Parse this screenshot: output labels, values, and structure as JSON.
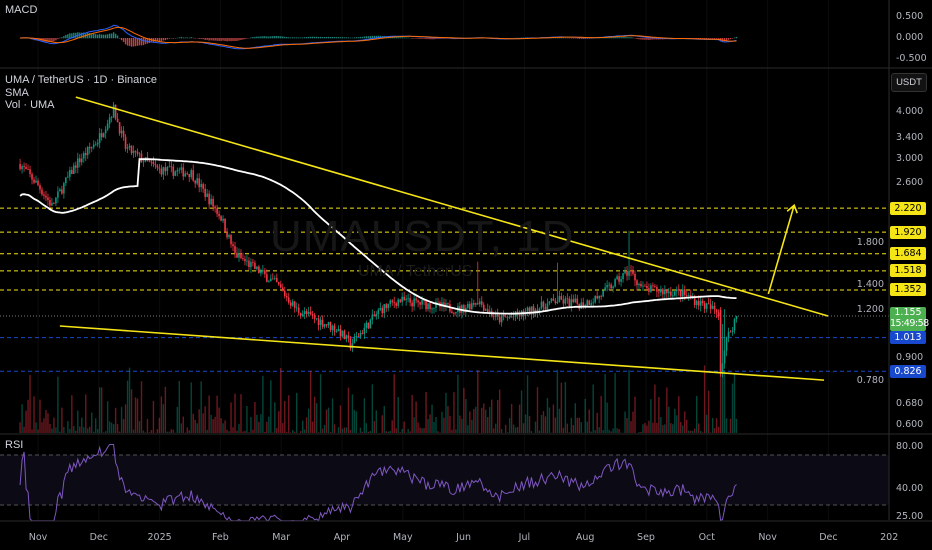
{
  "header": {
    "symbol_title": "UMA / TetherUS · 1D · Binance",
    "sma_label": "SMA",
    "vol_label": "Vol · UMA",
    "currency_button": "USDT"
  },
  "watermark": {
    "ticker": "UMAUSDT, 1D",
    "name": "UMA / TetherUS"
  },
  "colors": {
    "up": "#089981",
    "down": "#f23645",
    "sma": "#ffffff",
    "trendline": "#f5e516",
    "resistance": "#f5e516",
    "support": "#1848cc",
    "rsi": "#7e57c2",
    "macd": "#2962ff",
    "signal": "#ff6d00",
    "last_price": "#4caf50"
  },
  "chart_data": [
    {
      "type": "candlestick",
      "title": "UMA / TetherUS · 1D · Binance",
      "scale": "log",
      "ylim": [
        0.57,
        4.6
      ],
      "x_ticks": [
        "Nov",
        "Dec",
        "2025",
        "Feb",
        "Mar",
        "Apr",
        "May",
        "Jun",
        "Jul",
        "Aug",
        "Sep",
        "Oct",
        "Nov",
        "Dec",
        "202"
      ],
      "y_ticks": [
        "4.000",
        "3.400",
        "3.000",
        "2.600",
        "1.800",
        "1.400",
        "1.200",
        "0.900",
        "0.780",
        "0.680",
        "0.600"
      ],
      "approx_close_path": [
        [
          "2024-10-23",
          2.9
        ],
        [
          "2024-11-01",
          2.55
        ],
        [
          "2024-11-08",
          2.25
        ],
        [
          "2024-11-20",
          2.9
        ],
        [
          "2024-12-01",
          3.35
        ],
        [
          "2024-12-09",
          4.05
        ],
        [
          "2024-12-15",
          3.2
        ],
        [
          "2024-12-25",
          2.95
        ],
        [
          "2025-01-01",
          2.8
        ],
        [
          "2025-01-17",
          2.75
        ],
        [
          "2025-02-01",
          2.1
        ],
        [
          "2025-02-08",
          1.68
        ],
        [
          "2025-03-01",
          1.4
        ],
        [
          "2025-03-11",
          1.2
        ],
        [
          "2025-04-01",
          1.06
        ],
        [
          "2025-04-07",
          0.97
        ],
        [
          "2025-04-22",
          1.2
        ],
        [
          "2025-05-01",
          1.27
        ],
        [
          "2025-05-15",
          1.24
        ],
        [
          "2025-06-01",
          1.2
        ],
        [
          "2025-06-10",
          1.27
        ],
        [
          "2025-06-20",
          1.13
        ],
        [
          "2025-07-01",
          1.16
        ],
        [
          "2025-07-20",
          1.27
        ],
        [
          "2025-08-01",
          1.24
        ],
        [
          "2025-08-10",
          1.3
        ],
        [
          "2025-08-25",
          1.52
        ],
        [
          "2025-09-01",
          1.36
        ],
        [
          "2025-09-20",
          1.33
        ],
        [
          "2025-10-01",
          1.24
        ],
        [
          "2025-10-09",
          1.18
        ],
        [
          "2025-10-10",
          0.83
        ],
        [
          "2025-10-13",
          1.0
        ],
        [
          "2025-10-18",
          1.155
        ]
      ],
      "levels": [
        {
          "value": 2.22,
          "label": "2.220",
          "kind": "resistance"
        },
        {
          "value": 1.92,
          "label": "1.920",
          "kind": "resistance"
        },
        {
          "value": 1.684,
          "label": "1.684",
          "kind": "resistance"
        },
        {
          "value": 1.518,
          "label": "1.518",
          "kind": "resistance"
        },
        {
          "value": 1.352,
          "label": "1.352",
          "kind": "resistance"
        },
        {
          "value": 1.013,
          "label": "1.013",
          "kind": "support"
        },
        {
          "value": 0.826,
          "label": "0.826",
          "kind": "support"
        }
      ],
      "last_price": {
        "value": 1.155,
        "label": "1.155",
        "countdown": "15:49:58"
      },
      "trendlines": [
        {
          "name": "upper",
          "from": [
            "2024-11-20",
            4.35
          ],
          "to": [
            "2025-12-03",
            1.155
          ]
        },
        {
          "name": "lower",
          "from": [
            "2024-11-12",
            1.087
          ],
          "to": [
            "2025-12-01",
            0.783
          ]
        }
      ],
      "arrow": {
        "from": [
          "2025-11-03",
          1.32
        ],
        "to": [
          "2025-11-16",
          2.26
        ]
      }
    },
    {
      "type": "line",
      "title": "MACD",
      "y_ticks": [
        "0.500",
        "0.000",
        "-0.500"
      ]
    },
    {
      "type": "line",
      "title": "RSI",
      "y_ticks": [
        "80.00",
        "40.00",
        "25.00"
      ]
    }
  ]
}
